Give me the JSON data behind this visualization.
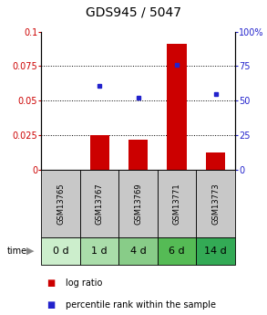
{
  "title": "GDS945 / 5047",
  "samples": [
    "GSM13765",
    "GSM13767",
    "GSM13769",
    "GSM13771",
    "GSM13773"
  ],
  "time_labels": [
    "0 d",
    "1 d",
    "4 d",
    "6 d",
    "14 d"
  ],
  "log_ratio": [
    0.0,
    0.025,
    0.022,
    0.091,
    0.013
  ],
  "percentile_rank": [
    null,
    0.061,
    0.052,
    0.076,
    0.055
  ],
  "ylim_left": [
    0,
    0.1
  ],
  "ylim_right": [
    0,
    100
  ],
  "yticks_left": [
    0,
    0.025,
    0.05,
    0.075,
    0.1
  ],
  "ytick_labels_left": [
    "0",
    "0.025",
    "0.05",
    "0.075",
    "0.1"
  ],
  "yticks_right": [
    0,
    25,
    50,
    75,
    100
  ],
  "ytick_labels_right": [
    "0",
    "25",
    "50",
    "75",
    "100%"
  ],
  "bar_color": "#cc0000",
  "dot_color": "#2222cc",
  "bar_width": 0.5,
  "bg_plot": "#ffffff",
  "bg_gsm": "#c8c8c8",
  "time_colors": [
    "#cceecc",
    "#aaddaa",
    "#88cc88",
    "#55bb55",
    "#33aa55"
  ],
  "left_axis_color": "#cc0000",
  "right_axis_color": "#2222cc",
  "title_fontsize": 10,
  "tick_fontsize": 7,
  "legend_fontsize": 7,
  "sample_fontsize": 6,
  "time_fontsize": 8
}
